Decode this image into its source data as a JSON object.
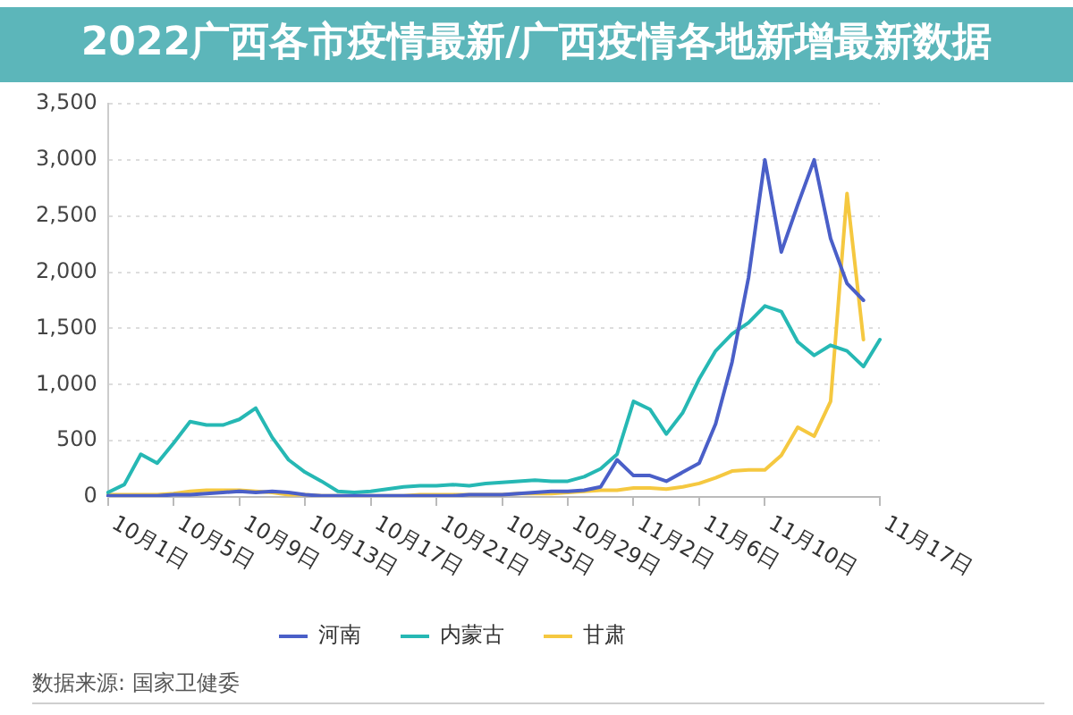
{
  "chart_data": {
    "type": "line",
    "title": "2022广西各市疫情最新/广西疫情各地新增最新数据",
    "categories": [
      "10月1日",
      null,
      null,
      null,
      "10月5日",
      null,
      null,
      null,
      "10月9日",
      null,
      null,
      null,
      "10月13日",
      null,
      null,
      null,
      "10月17日",
      null,
      null,
      null,
      "10月21日",
      null,
      null,
      null,
      "10月25日",
      null,
      null,
      null,
      "10月29日",
      null,
      null,
      null,
      "11月2日",
      null,
      null,
      null,
      "11月6日",
      null,
      null,
      null,
      "11月10日",
      null,
      null,
      null,
      null,
      null,
      null,
      "11月17日"
    ],
    "series": [
      {
        "name": "河南",
        "color": "#4a5fc8",
        "values": [
          10,
          10,
          10,
          10,
          20,
          20,
          30,
          40,
          50,
          40,
          50,
          40,
          20,
          10,
          10,
          10,
          10,
          10,
          10,
          10,
          10,
          10,
          20,
          20,
          20,
          30,
          40,
          50,
          50,
          60,
          90,
          330,
          190,
          190,
          140,
          220,
          300,
          650,
          1200,
          1950,
          3000,
          2180,
          2600,
          3000,
          2300,
          1900,
          1750,
          null
        ]
      },
      {
        "name": "内蒙古",
        "color": "#26b8b4",
        "values": [
          40,
          110,
          380,
          300,
          480,
          670,
          640,
          640,
          690,
          790,
          530,
          330,
          220,
          140,
          50,
          40,
          50,
          70,
          90,
          100,
          100,
          110,
          100,
          120,
          130,
          140,
          150,
          140,
          140,
          180,
          250,
          380,
          850,
          780,
          560,
          750,
          1050,
          1300,
          1450,
          1550,
          1700,
          1650,
          1380,
          1260,
          1350,
          1300,
          1160,
          1400
        ]
      },
      {
        "name": "甘肃",
        "color": "#f5c840",
        "values": [
          20,
          20,
          20,
          20,
          30,
          50,
          60,
          60,
          60,
          50,
          40,
          20,
          20,
          10,
          10,
          10,
          10,
          10,
          10,
          20,
          20,
          20,
          20,
          20,
          20,
          30,
          30,
          30,
          40,
          50,
          60,
          60,
          80,
          80,
          70,
          90,
          120,
          170,
          230,
          240,
          240,
          370,
          620,
          540,
          850,
          2700,
          1400,
          null
        ]
      }
    ],
    "ylim": [
      0,
      3500
    ],
    "yticks": [
      0,
      500,
      {
        "value": 1000,
        "label": "1,000"
      },
      {
        "value": 1500,
        "label": "1,500"
      },
      {
        "value": 2000,
        "label": "2,000"
      },
      {
        "value": 2500,
        "label": "2,500"
      },
      {
        "value": 3000,
        "label": "3,000"
      },
      {
        "value": 3500,
        "label": "3,500"
      }
    ],
    "grid": "y",
    "legend": "bottom",
    "annotations": [
      "数据来源: 国家卫健委"
    ]
  }
}
